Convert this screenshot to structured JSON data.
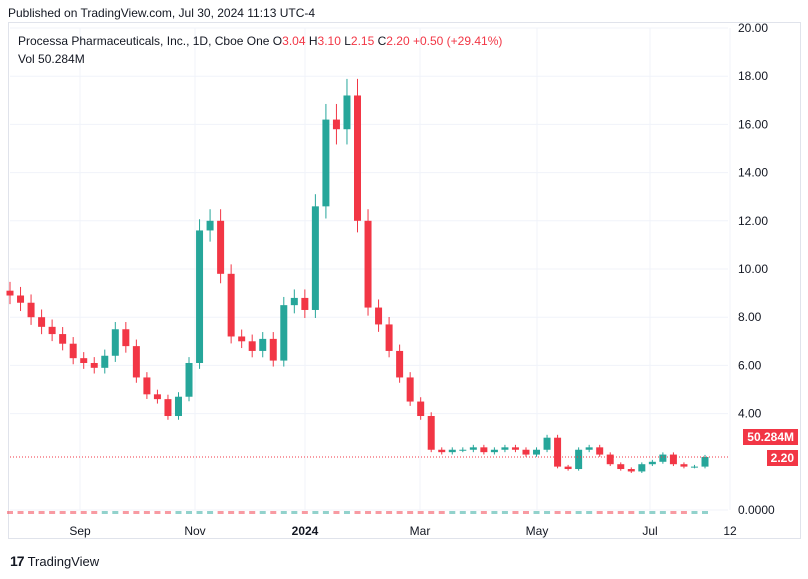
{
  "header": {
    "published": "Published on TradingView.com, Jul 30, 2024 11:13 UTC-4"
  },
  "legend": {
    "name": "Processa Pharmaceuticals, Inc., 1D, Cboe One",
    "o_label": "O",
    "o_value": "3.04",
    "h_label": "H",
    "h_value": "3.10",
    "l_label": "L",
    "l_value": "2.15",
    "c_label": "C",
    "c_value": "2.20",
    "change": "+0.50 (+29.41%)",
    "vol_label": "Vol",
    "vol_value": "50.284M"
  },
  "badges": {
    "volume": "50.284M",
    "price": "2.20"
  },
  "footer": {
    "brand": "TradingView"
  },
  "colors": {
    "up": "#26a69a",
    "down": "#f23645",
    "grid": "#f0f3fa",
    "text": "#131722"
  },
  "chart_data": {
    "type": "candlestick",
    "y_axis_ticks": [
      "20.00",
      "18.00",
      "16.00",
      "14.00",
      "12.00",
      "10.00",
      "8.00",
      "6.00",
      "4.00",
      "0.0000"
    ],
    "ylim": [
      0,
      20
    ],
    "x_axis_ticks": [
      "Sep",
      "Nov",
      "2024",
      "Mar",
      "May",
      "Jul",
      "12"
    ],
    "last_close": 2.2,
    "last_volume": "50.284M",
    "series": [
      {
        "name": "close",
        "values": [
          8.9,
          8.6,
          8.0,
          7.6,
          7.3,
          6.9,
          6.3,
          6.1,
          5.9,
          6.4,
          7.5,
          6.8,
          5.5,
          4.8,
          4.6,
          3.9,
          4.7,
          6.1,
          11.6,
          12.0,
          9.8,
          7.2,
          7.0,
          6.6,
          7.1,
          6.2,
          8.5,
          8.8,
          8.3,
          12.6,
          16.2,
          15.8,
          17.2,
          12.0,
          8.4,
          7.7,
          6.6,
          5.5,
          4.5,
          3.9,
          2.5,
          2.4,
          2.5,
          2.5,
          2.6,
          2.4,
          2.5,
          2.6,
          2.5,
          2.3,
          2.5,
          3.0,
          1.8,
          1.7,
          2.5,
          2.6,
          2.3,
          1.9,
          1.7,
          1.6,
          1.9,
          2.0,
          2.3,
          1.9,
          1.8,
          1.8,
          2.2
        ]
      }
    ]
  }
}
